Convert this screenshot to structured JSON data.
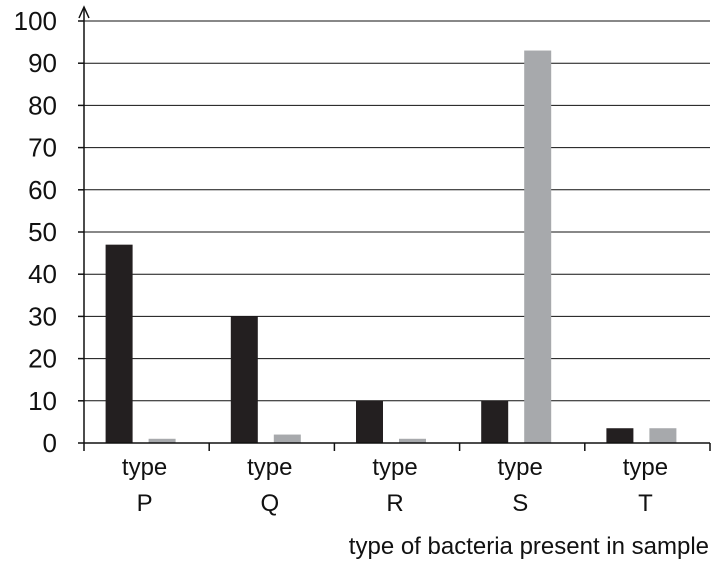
{
  "chart_data": {
    "type": "bar",
    "title": "",
    "xlabel": "type of bacteria present in sample",
    "ylabel": "",
    "ylim": [
      0,
      100
    ],
    "yticks": [
      "0",
      "10",
      "20",
      "30",
      "40",
      "50",
      "60",
      "70",
      "80",
      "90",
      "100"
    ],
    "grid": true,
    "categories": [
      {
        "line1": "type",
        "line2": "P"
      },
      {
        "line1": "type",
        "line2": "Q"
      },
      {
        "line1": "type",
        "line2": "R"
      },
      {
        "line1": "type",
        "line2": "S"
      },
      {
        "line1": "type",
        "line2": "T"
      }
    ],
    "series": [
      {
        "values": [
          47,
          30,
          10,
          10,
          3.5
        ],
        "color": "#231f20"
      },
      {
        "values": [
          1,
          2,
          1,
          93,
          3.5
        ],
        "color": "#a7a9ac"
      }
    ]
  }
}
